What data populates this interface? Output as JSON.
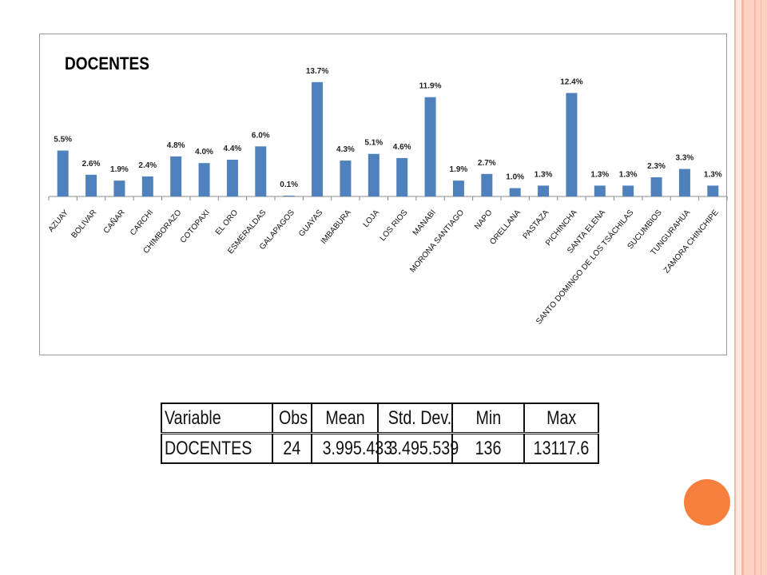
{
  "chart_data": {
    "type": "bar",
    "title": "DOCENTES",
    "categories": [
      "AZUAY",
      "BOLIVAR",
      "CAÑAR",
      "CARCHI",
      "CHIMBORAZO",
      "COTOPAXI",
      "EL ORO",
      "ESMERALDAS",
      "GALAPAGOS",
      "GUAYAS",
      "IMBABURA",
      "LOJA",
      "LOS RIOS",
      "MANABI",
      "MORONA SANTIAGO",
      "NAPO",
      "ORELLANA",
      "PASTAZA",
      "PICHINCHA",
      "SANTA ELENA",
      "SANTO DOMINGO DE LOS TSÁCHILAS",
      "SUCUMBIOS",
      "TUNGURAHUA",
      "ZAMORA CHINCHIPE"
    ],
    "values": [
      5.5,
      2.6,
      1.9,
      2.4,
      4.8,
      4.0,
      4.4,
      6.0,
      0.1,
      13.7,
      4.3,
      5.1,
      4.6,
      11.9,
      1.9,
      2.7,
      1.0,
      1.3,
      12.4,
      1.3,
      1.3,
      2.3,
      3.3,
      1.3
    ],
    "labels": [
      "5.5%",
      "2.6%",
      "1.9%",
      "2.4%",
      "4.8%",
      "4.0%",
      "4.4%",
      "6.0%",
      "0.1%",
      "13.7%",
      "4.3%",
      "5.1%",
      "4.6%",
      "11.9%",
      "1.9%",
      "2.7%",
      "1.0%",
      "1.3%",
      "12.4%",
      "1.3%",
      "1.3%",
      "2.3%",
      "3.3%",
      "1.3%"
    ],
    "unit": "%",
    "ylim": [
      0,
      14
    ],
    "bar_color": "#4f81bd",
    "legend": "none",
    "grid": false
  },
  "stats_table": {
    "headers": [
      "Variable",
      "Obs",
      "Mean",
      "Std. Dev.",
      "Min",
      "Max"
    ],
    "row": [
      "DOCENTES",
      "24",
      "3.995.433",
      "3.495.539",
      "136",
      "13117.6"
    ]
  },
  "colors": {
    "accent_circle": "#f77f3e",
    "stripes": "#fbd2c3"
  }
}
